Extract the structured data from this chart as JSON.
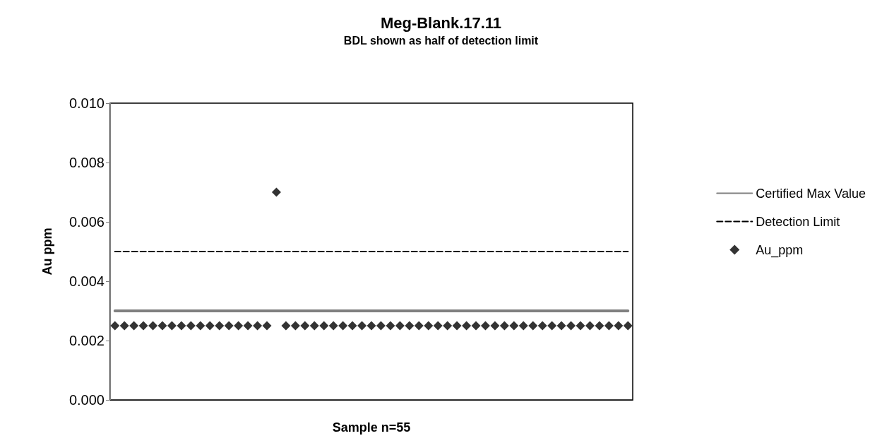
{
  "chart_data": {
    "type": "scatter",
    "title": "Meg-Blank.17.11",
    "subtitle": "BDL shown as half of detection limit",
    "xlabel": "Sample n=55",
    "ylabel": "Au ppm",
    "categories": [
      null,
      null,
      null,
      null,
      null,
      null,
      null,
      null,
      null,
      null,
      null,
      null,
      null,
      null,
      null,
      null,
      null,
      null,
      null,
      null,
      null,
      null,
      null,
      null,
      null,
      null,
      null,
      null,
      null,
      null,
      null,
      null,
      null,
      null,
      null,
      null,
      null,
      null,
      null,
      null,
      null,
      null,
      null,
      null,
      null,
      null,
      null,
      null,
      null,
      null,
      null,
      null,
      null,
      null,
      null
    ],
    "series": [
      {
        "name": "Certified Max Value",
        "type": "line",
        "color": "#808080",
        "line_style": "solid",
        "values": [
          0.003,
          0.003,
          0.003,
          0.003,
          0.003,
          0.003,
          0.003,
          0.003,
          0.003,
          0.003,
          0.003,
          0.003,
          0.003,
          0.003,
          0.003,
          0.003,
          0.003,
          0.003,
          0.003,
          0.003,
          0.003,
          0.003,
          0.003,
          0.003,
          0.003,
          0.003,
          0.003,
          0.003,
          0.003,
          0.003,
          0.003,
          0.003,
          0.003,
          0.003,
          0.003,
          0.003,
          0.003,
          0.003,
          0.003,
          0.003,
          0.003,
          0.003,
          0.003,
          0.003,
          0.003,
          0.003,
          0.003,
          0.003,
          0.003,
          0.003,
          0.003,
          0.003,
          0.003,
          0.003,
          0.003
        ]
      },
      {
        "name": "Detection Limit",
        "type": "line",
        "color": "#000000",
        "line_style": "dashed",
        "values": [
          0.005,
          0.005,
          0.005,
          0.005,
          0.005,
          0.005,
          0.005,
          0.005,
          0.005,
          0.005,
          0.005,
          0.005,
          0.005,
          0.005,
          0.005,
          0.005,
          0.005,
          0.005,
          0.005,
          0.005,
          0.005,
          0.005,
          0.005,
          0.005,
          0.005,
          0.005,
          0.005,
          0.005,
          0.005,
          0.005,
          0.005,
          0.005,
          0.005,
          0.005,
          0.005,
          0.005,
          0.005,
          0.005,
          0.005,
          0.005,
          0.005,
          0.005,
          0.005,
          0.005,
          0.005,
          0.005,
          0.005,
          0.005,
          0.005,
          0.005,
          0.005,
          0.005,
          0.005,
          0.005,
          0.005
        ]
      },
      {
        "name": "Au_ppm",
        "type": "scatter",
        "color": "#000000",
        "marker": "diamond",
        "values": [
          0.0025,
          0.0025,
          0.0025,
          0.0025,
          0.0025,
          0.0025,
          0.0025,
          0.0025,
          0.0025,
          0.0025,
          0.0025,
          0.0025,
          0.0025,
          0.0025,
          0.0025,
          0.0025,
          0.0025,
          0.007,
          0.0025,
          0.0025,
          0.0025,
          0.0025,
          0.0025,
          0.0025,
          0.0025,
          0.0025,
          0.0025,
          0.0025,
          0.0025,
          0.0025,
          0.0025,
          0.0025,
          0.0025,
          0.0025,
          0.0025,
          0.0025,
          0.0025,
          0.0025,
          0.0025,
          0.0025,
          0.0025,
          0.0025,
          0.0025,
          0.0025,
          0.0025,
          0.0025,
          0.0025,
          0.0025,
          0.0025,
          0.0025,
          0.0025,
          0.0025,
          0.0025,
          0.0025,
          0.0025
        ]
      }
    ],
    "ylim": [
      0,
      0.01
    ],
    "yticks": [
      {
        "value": 0,
        "label": "0.000"
      },
      {
        "value": 0.002,
        "label": "0.002"
      },
      {
        "value": 0.004,
        "label": "0.004"
      },
      {
        "value": 0.006,
        "label": "0.006"
      },
      {
        "value": 0.008,
        "label": "0.008"
      },
      {
        "value": 0.01,
        "label": "0.010"
      }
    ],
    "grid": false,
    "legend": "right"
  }
}
